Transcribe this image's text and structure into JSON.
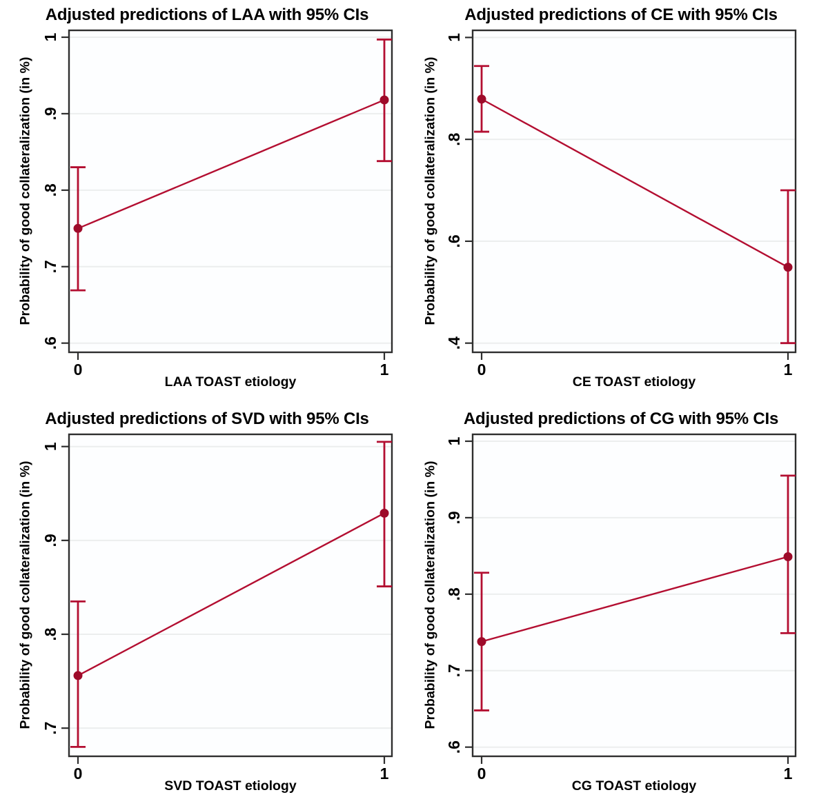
{
  "page": {
    "background": "#ffffff"
  },
  "colors": {
    "series_line": "#b30e31",
    "error_bar": "#b30e31",
    "marker_fill": "#9e0b2a",
    "frame": "#2e2e2e",
    "tick": "#2e2e2e",
    "grid_line": "#eceeee",
    "plot_background": "#fdfeff",
    "text": "#000000"
  },
  "chart_data": [
    {
      "type": "line",
      "group": "LAA",
      "title": "Adjusted predictions of LAA with 95% CIs",
      "xlabel": "LAA TOAST etiology",
      "ylabel": "Probability of good collateralization (in %)",
      "legend": "none",
      "grid": "horizontal",
      "ylim": [
        0.588,
        1.009
      ],
      "x_ticks": [
        {
          "x": 0,
          "label": "0"
        },
        {
          "x": 1,
          "label": "1"
        }
      ],
      "y_ticks": [
        {
          "v": 1.0,
          "label": "1"
        },
        {
          "v": 0.9,
          "label": ".9"
        },
        {
          "v": 0.8,
          "label": ".8"
        },
        {
          "v": 0.7,
          "label": ".7"
        },
        {
          "v": 0.6,
          "label": ".6"
        }
      ],
      "points": [
        {
          "x": 0,
          "y": 0.75,
          "ci_low": 0.669,
          "ci_high": 0.83
        },
        {
          "x": 1,
          "y": 0.918,
          "ci_low": 0.838,
          "ci_high": 0.997
        }
      ]
    },
    {
      "type": "line",
      "group": "CE",
      "title": "Adjusted predictions of CE with 95% CIs",
      "xlabel": "CE TOAST etiology",
      "ylabel": "Probability of good collateralization (in %)",
      "legend": "none",
      "grid": "horizontal",
      "ylim": [
        0.382,
        1.014
      ],
      "x_ticks": [
        {
          "x": 0,
          "label": "0"
        },
        {
          "x": 1,
          "label": "1"
        }
      ],
      "y_ticks": [
        {
          "v": 1.0,
          "label": "1"
        },
        {
          "v": 0.8,
          "label": ".8"
        },
        {
          "v": 0.6,
          "label": ".6"
        },
        {
          "v": 0.4,
          "label": ".4"
        }
      ],
      "points": [
        {
          "x": 0,
          "y": 0.879,
          "ci_low": 0.815,
          "ci_high": 0.944
        },
        {
          "x": 1,
          "y": 0.549,
          "ci_low": 0.4,
          "ci_high": 0.7
        }
      ]
    },
    {
      "type": "line",
      "group": "SVD",
      "title": "Adjusted predictions of SVD with 95% CIs",
      "xlabel": "SVD TOAST etiology",
      "ylabel": "Probability of good collateralization (in %)",
      "legend": "none",
      "grid": "horizontal",
      "ylim": [
        0.67,
        1.013
      ],
      "x_ticks": [
        {
          "x": 0,
          "label": "0"
        },
        {
          "x": 1,
          "label": "1"
        }
      ],
      "y_ticks": [
        {
          "v": 1.0,
          "label": "1"
        },
        {
          "v": 0.9,
          "label": ".9"
        },
        {
          "v": 0.8,
          "label": ".8"
        },
        {
          "v": 0.7,
          "label": ".7"
        }
      ],
      "points": [
        {
          "x": 0,
          "y": 0.756,
          "ci_low": 0.68,
          "ci_high": 0.835
        },
        {
          "x": 1,
          "y": 0.929,
          "ci_low": 0.851,
          "ci_high": 1.005
        }
      ]
    },
    {
      "type": "line",
      "group": "CG",
      "title": "Adjusted predictions of CG with 95% CIs",
      "xlabel": "CG TOAST etiology",
      "ylabel": "Probability of good collateralization (in %)",
      "legend": "none",
      "grid": "horizontal",
      "ylim": [
        0.588,
        1.009
      ],
      "x_ticks": [
        {
          "x": 0,
          "label": "0"
        },
        {
          "x": 1,
          "label": "1"
        }
      ],
      "y_ticks": [
        {
          "v": 1.0,
          "label": "1"
        },
        {
          "v": 0.9,
          "label": ".9"
        },
        {
          "v": 0.8,
          "label": ".8"
        },
        {
          "v": 0.7,
          "label": ".7"
        },
        {
          "v": 0.6,
          "label": ".6"
        }
      ],
      "points": [
        {
          "x": 0,
          "y": 0.738,
          "ci_low": 0.648,
          "ci_high": 0.828
        },
        {
          "x": 1,
          "y": 0.849,
          "ci_low": 0.749,
          "ci_high": 0.955
        }
      ]
    }
  ]
}
